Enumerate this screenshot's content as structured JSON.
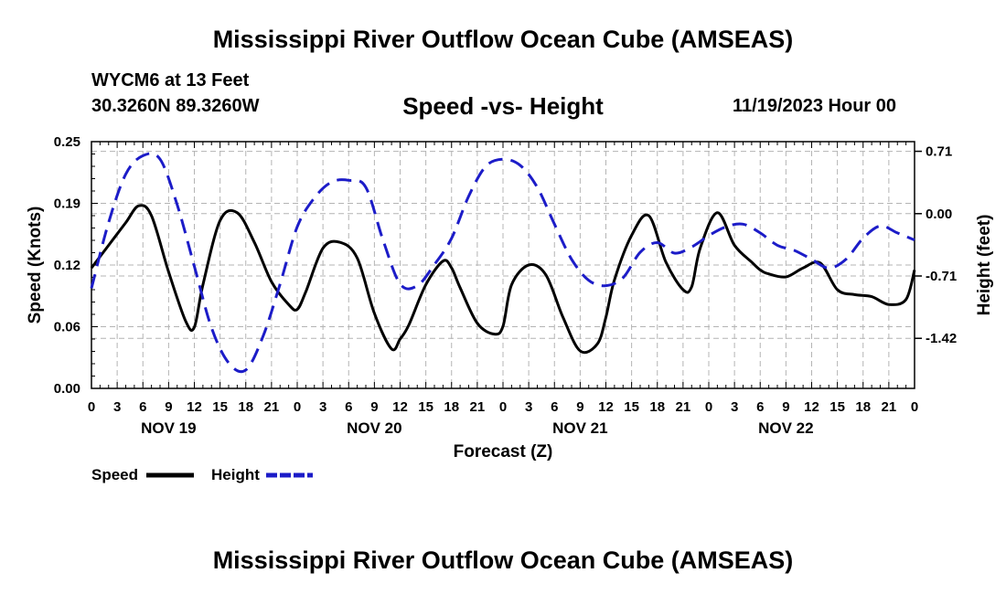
{
  "header": {
    "title": "Mississippi River Outflow Ocean Cube (AMSEAS)",
    "station": "WYCM6 at 13 Feet",
    "coordinates": "30.3260N  89.3260W",
    "subtitle": "Speed -vs- Height",
    "datetime": "11/19/2023 Hour 00"
  },
  "footer": {
    "title": "Mississippi River Outflow Ocean Cube (AMSEAS)"
  },
  "chart_data": {
    "type": "line",
    "title": "Speed -vs- Height",
    "xlabel": "Forecast (Z)",
    "ylabel": "Speed (Knots)",
    "y2label": "Height (feet)",
    "x_range_hours": [
      0,
      96
    ],
    "ylim": [
      0,
      0.25
    ],
    "y2lim": [
      -1.99,
      0.82
    ],
    "y_ticks": [
      "0.00",
      "0.06",
      "0.12",
      "0.19",
      "0.25"
    ],
    "y_tick_values": [
      0,
      0.0625,
      0.125,
      0.1875,
      0.25
    ],
    "y2_ticks": [
      "0.71",
      "0.00",
      "-0.71",
      "-1.42"
    ],
    "y2_tick_values": [
      0.71,
      0,
      -0.71,
      -1.42
    ],
    "x_tick_labels": [
      "0",
      "3",
      "6",
      "9",
      "12",
      "15",
      "18",
      "21",
      "0",
      "3",
      "6",
      "9",
      "12",
      "15",
      "18",
      "21",
      "0",
      "3",
      "6",
      "9",
      "12",
      "15",
      "18",
      "21",
      "0",
      "3",
      "6",
      "9",
      "12",
      "15",
      "18",
      "21",
      "0"
    ],
    "day_labels": [
      {
        "label": "NOV 19",
        "hour": 9
      },
      {
        "label": "NOV 20",
        "hour": 33
      },
      {
        "label": "NOV 21",
        "hour": 57
      },
      {
        "label": "NOV 22",
        "hour": 81
      }
    ],
    "grid": true,
    "legend_position": "bottom-left",
    "series": [
      {
        "name": "Speed",
        "axis": "left",
        "color": "#000000",
        "style": "solid",
        "x": [
          0,
          2,
          4,
          5.5,
          7,
          9,
          11,
          12,
          13,
          15,
          17,
          19,
          21,
          23,
          24,
          25,
          27,
          29,
          31,
          33,
          35,
          36,
          37,
          39,
          41,
          42,
          43,
          45,
          47,
          48,
          49,
          51,
          53,
          55,
          57,
          59,
          60,
          61,
          63,
          65,
          67,
          69,
          70,
          71,
          73,
          75,
          77,
          78,
          79,
          81,
          83,
          85,
          87,
          89,
          91,
          93,
          95,
          96
        ],
        "y": [
          0.122,
          0.145,
          0.168,
          0.185,
          0.175,
          0.118,
          0.068,
          0.062,
          0.105,
          0.17,
          0.178,
          0.148,
          0.108,
          0.085,
          0.08,
          0.098,
          0.142,
          0.148,
          0.132,
          0.076,
          0.04,
          0.05,
          0.064,
          0.105,
          0.129,
          0.122,
          0.102,
          0.066,
          0.055,
          0.063,
          0.105,
          0.125,
          0.115,
          0.072,
          0.038,
          0.045,
          0.072,
          0.11,
          0.155,
          0.175,
          0.128,
          0.1,
          0.103,
          0.142,
          0.178,
          0.145,
          0.128,
          0.12,
          0.116,
          0.113,
          0.122,
          0.127,
          0.1,
          0.095,
          0.093,
          0.085,
          0.09,
          0.12
        ]
      },
      {
        "name": "Height",
        "axis": "right",
        "color": "#1c1cc8",
        "style": "dashed",
        "x": [
          0,
          2,
          4,
          6,
          8,
          10,
          12,
          14,
          16,
          18,
          20,
          22,
          24,
          26,
          28,
          30,
          32,
          34,
          36,
          38,
          40,
          42,
          44,
          46,
          48,
          50,
          52,
          54,
          56,
          58,
          60,
          62,
          64,
          66,
          68,
          70,
          72,
          74,
          76,
          78,
          80,
          82,
          84,
          86,
          88,
          90,
          92,
          94,
          96
        ],
        "y": [
          -0.85,
          -0.1,
          0.45,
          0.66,
          0.62,
          0.1,
          -0.6,
          -1.3,
          -1.7,
          -1.78,
          -1.4,
          -0.8,
          -0.15,
          0.18,
          0.36,
          0.38,
          0.3,
          -0.3,
          -0.8,
          -0.82,
          -0.58,
          -0.28,
          0.2,
          0.54,
          0.62,
          0.55,
          0.3,
          -0.12,
          -0.52,
          -0.76,
          -0.82,
          -0.73,
          -0.44,
          -0.33,
          -0.45,
          -0.38,
          -0.25,
          -0.15,
          -0.12,
          -0.22,
          -0.36,
          -0.42,
          -0.52,
          -0.62,
          -0.52,
          -0.28,
          -0.14,
          -0.22,
          -0.3
        ]
      }
    ]
  }
}
